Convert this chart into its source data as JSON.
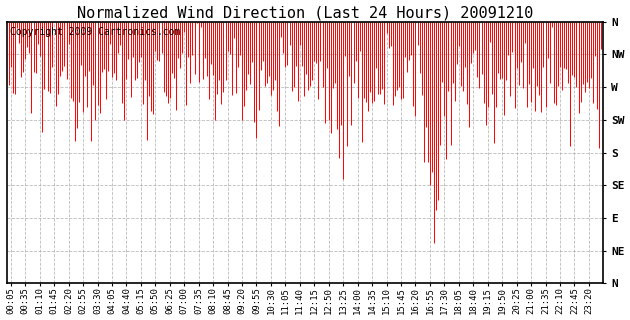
{
  "title": "Normalized Wind Direction (Last 24 Hours) 20091210",
  "copyright_text": "Copyright 2009 Cartronics.com",
  "line_color": "#ff0000",
  "background_color": "#ffffff",
  "grid_color": "#aaaaaa",
  "ytick_labels": [
    "N",
    "NW",
    "W",
    "SW",
    "S",
    "SE",
    "E",
    "NE",
    "N"
  ],
  "ytick_values": [
    1.0,
    0.875,
    0.75,
    0.625,
    0.5,
    0.375,
    0.25,
    0.125,
    0.0
  ],
  "ylim": [
    0.0,
    1.0
  ],
  "title_fontsize": 11,
  "annotation_fontsize": 7,
  "tick_fontsize": 6.5,
  "xtick_labels": [
    "00:05",
    "00:35",
    "01:10",
    "01:45",
    "02:20",
    "02:55",
    "03:30",
    "04:05",
    "04:40",
    "05:15",
    "05:50",
    "06:25",
    "07:00",
    "07:35",
    "08:10",
    "08:45",
    "09:20",
    "09:55",
    "10:30",
    "11:05",
    "11:40",
    "12:15",
    "12:50",
    "13:25",
    "14:00",
    "14:35",
    "15:10",
    "15:45",
    "16:20",
    "16:55",
    "17:30",
    "18:05",
    "18:40",
    "19:15",
    "19:50",
    "20:25",
    "21:00",
    "21:35",
    "22:10",
    "22:45",
    "23:20",
    "23:55"
  ],
  "num_points": 288,
  "seed": 12345
}
